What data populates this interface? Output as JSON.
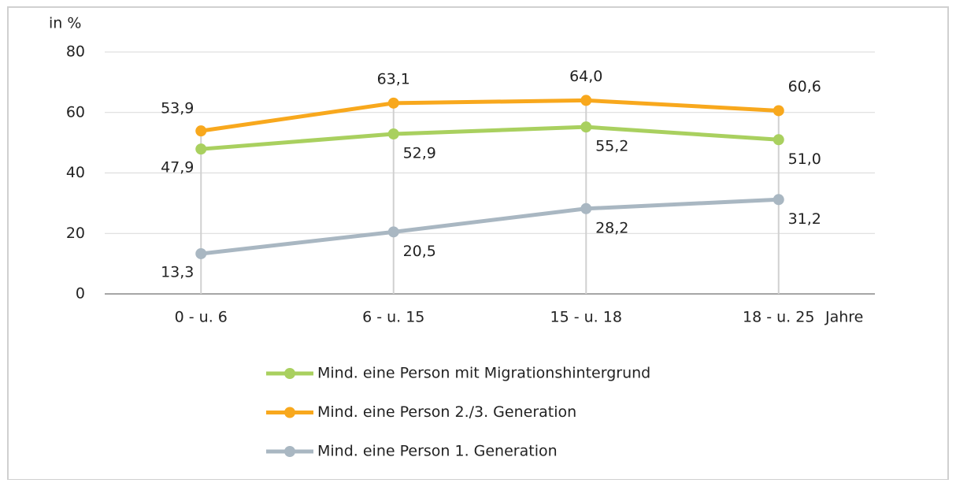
{
  "chart_data": {
    "type": "line",
    "y_label": "in %",
    "x_label": "Jahre",
    "categories": [
      "0 - u. 6",
      "6 - u. 15",
      "15 - u. 18",
      "18 - u. 25"
    ],
    "series": [
      {
        "name": "Mind. eine Person mit Migrationshintergrund",
        "color": "#a9d05f",
        "values": [
          47.9,
          52.9,
          55.2,
          51.0
        ],
        "value_labels": [
          "47,9",
          "52,9",
          "55,2",
          "51,0"
        ]
      },
      {
        "name": "Mind. eine Person 2./3. Generation",
        "color": "#f8a81d",
        "values": [
          53.9,
          63.1,
          64.0,
          60.6
        ],
        "value_labels": [
          "53,9",
          "63,1",
          "64,0",
          "60,6"
        ]
      },
      {
        "name": "Mind. eine Person 1. Generation",
        "color": "#a9b7c2",
        "values": [
          13.3,
          20.5,
          28.2,
          31.2
        ],
        "value_labels": [
          "13,3",
          "20,5",
          "28,2",
          "31,2"
        ]
      }
    ],
    "ylim": [
      0,
      80
    ],
    "yticks": [
      0,
      20,
      40,
      60,
      80
    ],
    "grid": true,
    "legend": "bottom"
  }
}
